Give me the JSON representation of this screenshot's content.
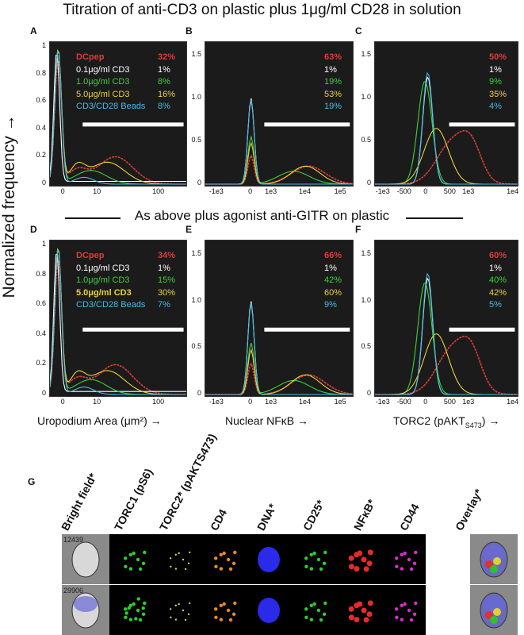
{
  "figure": {
    "title_row1": "Titration of anti-CD3 on plastic plus 1μg/ml CD28 in solution",
    "title_row2": "As above plus agonist anti-GITR on plastic",
    "y_axis_label": "Normalized frequency →",
    "x_labels": {
      "uropodium": "Uropodium Area (μm²) →",
      "nfkb": "Nuclear NFκB →",
      "torc2": "TORC2 (pAKT"
    },
    "torc2_sub": "S473",
    "torc2_tail": ") →",
    "series_colors": {
      "DCpep": "#e03a3a",
      "0.1μg/ml CD3": "#ffffff",
      "1.0μg/ml CD3": "#3bd13b",
      "5.0μg/ml CD3": "#e8d23a",
      "CD3/CD28 Beads": "#49b8e0"
    },
    "legend": [
      "DCpep",
      "0.1μg/ml CD3",
      "1.0μg/ml CD3",
      "5.0μg/ml CD3",
      "CD3/CD28 Beads"
    ],
    "panel_G_label": "G",
    "channels": [
      "Bright field*",
      "TORC1 (pS6)",
      "TORC2* (pAKTS473)",
      "CD4",
      "DNA*",
      "CD25*",
      "NFκB*",
      "CD44",
      "Overlay*"
    ],
    "cell_ids": [
      "12439",
      "29906"
    ]
  },
  "chart_data": [
    {
      "panel": "A",
      "type": "line",
      "xlabel": "Uropodium Area (μm²)",
      "ylabel": "Normalized frequency",
      "x_ticks": [
        "0",
        "10",
        "100"
      ],
      "y_ticks": [
        "0",
        "0.2",
        "0.4",
        "0.6",
        "0.8",
        "1"
      ],
      "ylim": [
        0,
        1
      ],
      "percentages": [
        "32%",
        "1%",
        "8%",
        "16%",
        "8%"
      ]
    },
    {
      "panel": "B",
      "type": "line",
      "xlabel": "Nuclear NFκB",
      "ylabel": "Normalized frequency",
      "x_ticks": [
        "-1e3",
        "0",
        "1e3",
        "1e4",
        "1e5"
      ],
      "y_ticks": [
        "0",
        "0.5",
        "1.0",
        "1.5"
      ],
      "ylim": [
        0,
        1.6
      ],
      "percentages": [
        "63%",
        "1%",
        "19%",
        "53%",
        "19%"
      ]
    },
    {
      "panel": "C",
      "type": "line",
      "xlabel": "TORC2 (pAKT S473)",
      "ylabel": "Normalized frequency",
      "x_ticks": [
        "-1e3",
        "-500",
        "0",
        "500",
        "1e3",
        "1e4"
      ],
      "y_ticks": [
        "0",
        "0.5",
        "1.0",
        "1.5"
      ],
      "ylim": [
        0,
        1.6
      ],
      "percentages": [
        "50%",
        "1%",
        "9%",
        "35%",
        "4%"
      ]
    },
    {
      "panel": "D",
      "type": "line",
      "xlabel": "Uropodium Area (μm²)",
      "ylabel": "Normalized frequency",
      "x_ticks": [
        "0",
        "10",
        "100"
      ],
      "y_ticks": [
        "0",
        "0.2",
        "0.4",
        "0.6",
        "0.8",
        "1"
      ],
      "ylim": [
        0,
        1
      ],
      "percentages": [
        "34%",
        "1%",
        "15%",
        "30%",
        "7%"
      ]
    },
    {
      "panel": "E",
      "type": "line",
      "xlabel": "Nuclear NFκB",
      "ylabel": "Normalized frequency",
      "x_ticks": [
        "-1e3",
        "0",
        "1e3",
        "1e4",
        "1e5"
      ],
      "y_ticks": [
        "0",
        "0.5",
        "1.0",
        "1.5"
      ],
      "ylim": [
        0,
        1.6
      ],
      "percentages": [
        "66%",
        "1%",
        "42%",
        "60%",
        "9%"
      ]
    },
    {
      "panel": "F",
      "type": "line",
      "xlabel": "TORC2 (pAKT S473)",
      "ylabel": "Normalized frequency",
      "x_ticks": [
        "-1e3",
        "-500",
        "0",
        "500",
        "1e3",
        "1e4"
      ],
      "y_ticks": [
        "0",
        "0.5",
        "1.0",
        "1.5"
      ],
      "ylim": [
        0,
        1.6
      ],
      "percentages": [
        "60%",
        "1%",
        "40%",
        "42%",
        "5%"
      ]
    }
  ]
}
